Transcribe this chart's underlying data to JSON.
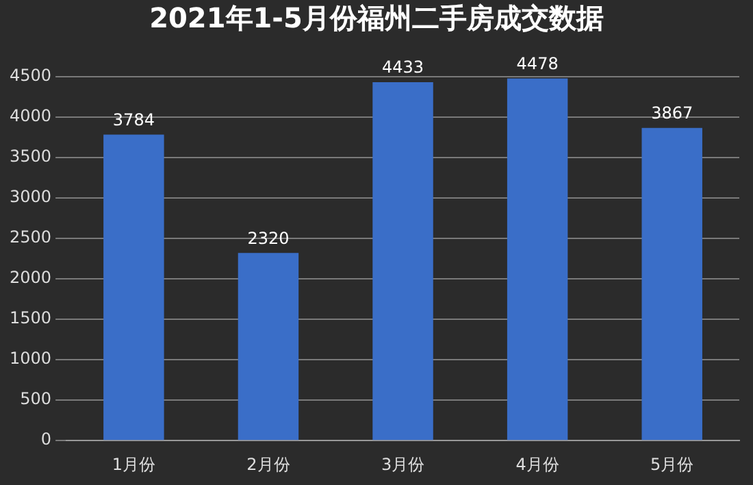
{
  "chart_data": {
    "type": "bar",
    "title": "2021年1-5月份福州二手房成交数据",
    "categories": [
      "1月份",
      "2月份",
      "3月份",
      "4月份",
      "5月份"
    ],
    "values": [
      3784,
      2320,
      4433,
      4478,
      3867
    ],
    "color": "#3a6ec8",
    "ylim": [
      0,
      4500
    ],
    "yticks": [
      0,
      500,
      1000,
      1500,
      2000,
      2500,
      3000,
      3500,
      4000,
      4500
    ],
    "grid": "y",
    "data_labels": true,
    "legend": false
  }
}
